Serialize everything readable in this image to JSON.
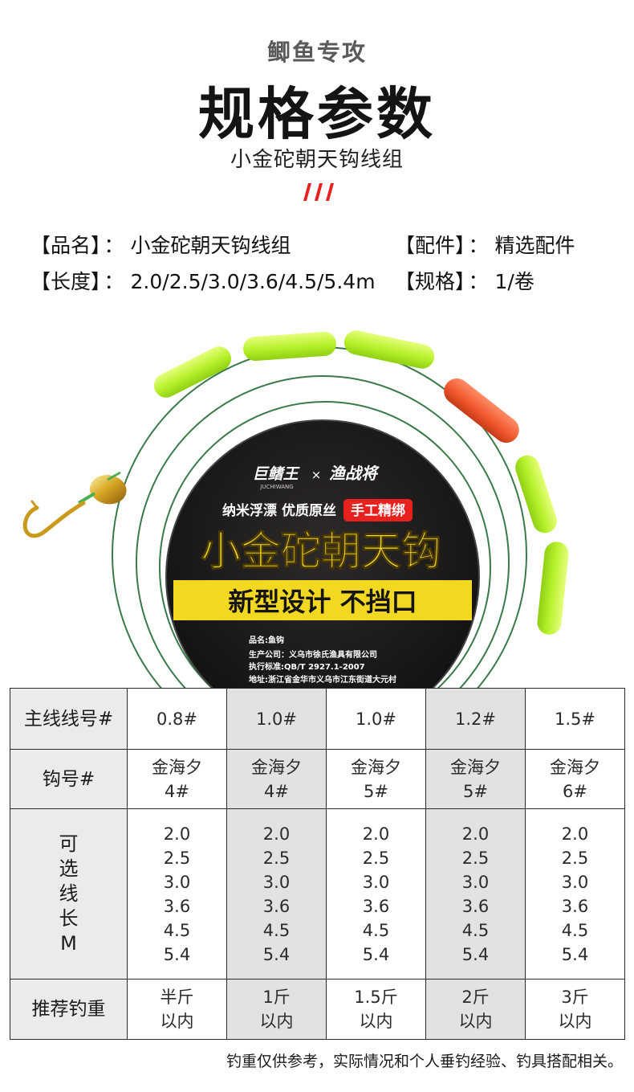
{
  "header": {
    "subtitle": "鲫鱼专攻",
    "title": "规格参数",
    "product": "小金砣朝天钩线组"
  },
  "specs": {
    "name_label": "【品名】",
    "name_value": "小金砣朝天钩线组",
    "parts_label": "【配件】",
    "parts_value": "精选配件",
    "length_label": "【长度】",
    "length_value": "2.0/2.5/3.0/3.6/4.5/5.4m",
    "spec_label": "【规格】",
    "spec_value": "1/卷",
    "separator": "："
  },
  "package_label": {
    "brand1": "巨鳍王",
    "brand1_en": "JUCHIWANG",
    "brand_cross": "×",
    "brand2": "渔战将",
    "features": "纳米浮漂  优质原丝",
    "handmade": "手工精绑",
    "title": "小金砣朝天钩",
    "slogan": "新型设计 不挡口",
    "info_name": "品名:鱼钩",
    "info_company": "生产公司：义乌市徐氏渔具有限公司",
    "info_standard": "执行标准:QB/T  2927.1-2007",
    "info_address": "地址:浙江省金华市义乌市江东街道大元村"
  },
  "table": {
    "row_labels": {
      "line": "主线线号#",
      "hook": "钩号#",
      "length": "可选线长M",
      "weight": "推荐钓重"
    },
    "line_numbers": [
      "0.8#",
      "1.0#",
      "1.0#",
      "1.2#",
      "1.5#"
    ],
    "hooks": [
      {
        "name": "金海夕",
        "size": "4#"
      },
      {
        "name": "金海夕",
        "size": "4#"
      },
      {
        "name": "金海夕",
        "size": "5#"
      },
      {
        "name": "金海夕",
        "size": "5#"
      },
      {
        "name": "金海夕",
        "size": "6#"
      }
    ],
    "lengths": [
      "2.0",
      "2.5",
      "3.0",
      "3.6",
      "4.5",
      "5.4"
    ],
    "weights": [
      {
        "amount": "半斤",
        "unit": "以内"
      },
      {
        "amount": "1斤",
        "unit": "以内"
      },
      {
        "amount": "1.5斤",
        "unit": "以内"
      },
      {
        "amount": "2斤",
        "unit": "以内"
      },
      {
        "amount": "3斤",
        "unit": "以内"
      }
    ]
  },
  "footnote": "钓重仅供参考，实际情况和个人垂钓经验、钓具搭配相关。",
  "colors": {
    "accent_red": "#e8211f",
    "float_green": "#b6f02a",
    "float_orange": "#f0562c",
    "line_green": "#3a7a4a",
    "label_yellow": "#f3d821",
    "table_shade": "#e2e2e2"
  },
  "icons": [
    "hook-icon",
    "sinker-icon",
    "fishing-line-icon",
    "float-icon"
  ]
}
